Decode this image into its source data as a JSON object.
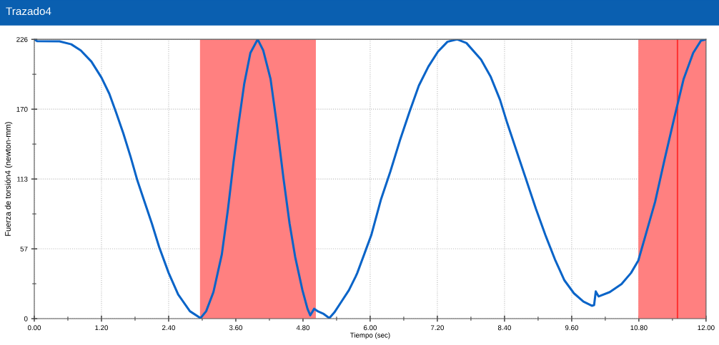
{
  "chart_data": {
    "type": "line",
    "title": "Trazado4",
    "xlabel": "Tiempo (sec)",
    "ylabel": "Fuerza de torsión4 (newton-mm)",
    "xlim": [
      0,
      12
    ],
    "ylim": [
      0,
      226
    ],
    "xticks": [
      {
        "value": 0,
        "label": "0.00"
      },
      {
        "value": 1.2,
        "label": "1.20"
      },
      {
        "value": 2.4,
        "label": "2.40"
      },
      {
        "value": 3.6,
        "label": "3.60"
      },
      {
        "value": 4.8,
        "label": "4.80"
      },
      {
        "value": 6,
        "label": "6.00"
      },
      {
        "value": 7.2,
        "label": "7.20"
      },
      {
        "value": 8.4,
        "label": "8.40"
      },
      {
        "value": 9.6,
        "label": "9.60"
      },
      {
        "value": 10.8,
        "label": "10.80"
      },
      {
        "value": 12,
        "label": "12.00"
      }
    ],
    "yticks": [
      0,
      {
        "value": 56.5,
        "label": "57"
      },
      {
        "value": 113,
        "label": "113"
      },
      {
        "value": 169.5,
        "label": "170"
      },
      226
    ],
    "grid": true,
    "marker": "none",
    "line_style": "solid",
    "bands": [
      {
        "axis": "x",
        "from": 2.96,
        "to": 5.03,
        "color": "#ff8080"
      },
      {
        "axis": "x",
        "from": 10.79,
        "to": 12,
        "color": "#ff8080"
      }
    ],
    "ref_lines": [
      {
        "axis": "x",
        "value": 11.49,
        "color": "#ff0000",
        "line_style": "solid"
      }
    ],
    "series": [
      {
        "color": "#0a64c8",
        "x": [
          0,
          0.05,
          0.45,
          0.66,
          0.83,
          1.02,
          1.2,
          1.34,
          1.46,
          1.59,
          1.72,
          1.84,
          1.97,
          2.1,
          2.23,
          2.4,
          2.57,
          2.78,
          2.97,
          3.07,
          3.2,
          3.35,
          3.46,
          3.56,
          3.65,
          3.75,
          3.86,
          3.99,
          4.09,
          4.22,
          4.33,
          4.45,
          4.56,
          4.66,
          4.79,
          4.88,
          4.93,
          5.0,
          5.07,
          5.17,
          5.27,
          5.36,
          5.49,
          5.62,
          5.74,
          5.77,
          6.02,
          6.19,
          6.36,
          6.53,
          6.7,
          6.87,
          7.04,
          7.21,
          7.38,
          7.55,
          7.72,
          7.98,
          8.15,
          8.32,
          8.45,
          8.62,
          8.79,
          8.96,
          9.13,
          9.3,
          9.47,
          9.64,
          9.81,
          9.96,
          10.0,
          10.03,
          10.08,
          10.28,
          10.49,
          10.66,
          10.79,
          10.91,
          11.09,
          11.26,
          11.43,
          11.6,
          11.77,
          11.91,
          12.0
        ],
        "values": [
          226,
          224.5,
          224.4,
          222,
          217,
          208,
          195,
          182,
          167,
          150,
          131,
          112,
          94.5,
          77,
          58,
          37,
          19.6,
          6,
          0.4,
          6,
          21.5,
          52,
          88.7,
          127,
          158,
          190,
          215,
          226,
          217,
          194,
          158,
          114,
          77,
          50,
          23,
          8,
          2.7,
          8,
          5.8,
          3.8,
          0.4,
          5,
          14,
          23,
          34,
          37,
          67.6,
          96,
          119,
          144,
          167,
          188.6,
          204,
          216,
          224,
          226,
          223,
          209.7,
          196,
          177,
          158,
          135,
          112,
          89,
          67.6,
          48,
          31,
          20.5,
          13.8,
          10.4,
          11,
          22,
          18,
          21.5,
          28,
          37,
          47,
          66,
          94.5,
          129,
          162,
          194,
          215,
          225,
          226
        ]
      }
    ]
  }
}
